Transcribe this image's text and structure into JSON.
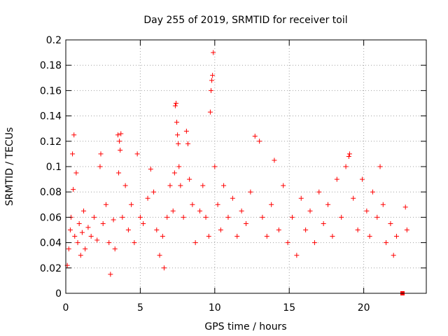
{
  "chart_data": {
    "type": "scatter",
    "title": "Day 255 of 2019, SRMTID for receiver toil",
    "xlabel": "GPS time / hours",
    "ylabel": "SRMTID / TECUs",
    "xlim": [
      0,
      24.2
    ],
    "ylim": [
      0,
      0.2
    ],
    "xticks": [
      0,
      5,
      10,
      15,
      20
    ],
    "xtick_labels": [
      "0",
      "5",
      "10",
      "15",
      "20"
    ],
    "yticks": [
      0,
      0.02,
      0.04,
      0.06,
      0.08,
      0.1,
      0.12,
      0.14,
      0.16,
      0.18,
      0.2
    ],
    "ytick_labels": [
      "0",
      "0.02",
      "0.04",
      "0.06",
      "0.08",
      "0.1",
      "0.12",
      "0.14",
      "0.16",
      "0.18",
      "0.2"
    ],
    "grid": true,
    "series": [
      {
        "marker": "plus",
        "color": "#ff0000",
        "points": [
          [
            0.1,
            0.022
          ],
          [
            0.2,
            0.035
          ],
          [
            0.3,
            0.05
          ],
          [
            0.35,
            0.06
          ],
          [
            0.45,
            0.11
          ],
          [
            0.5,
            0.082
          ],
          [
            0.55,
            0.125
          ],
          [
            0.6,
            0.045
          ],
          [
            0.7,
            0.095
          ],
          [
            0.8,
            0.04
          ],
          [
            0.9,
            0.055
          ],
          [
            1.0,
            0.03
          ],
          [
            1.1,
            0.048
          ],
          [
            1.2,
            0.065
          ],
          [
            1.3,
            0.035
          ],
          [
            1.5,
            0.052
          ],
          [
            1.7,
            0.045
          ],
          [
            1.9,
            0.06
          ],
          [
            2.1,
            0.042
          ],
          [
            2.3,
            0.1
          ],
          [
            2.35,
            0.11
          ],
          [
            2.5,
            0.055
          ],
          [
            2.7,
            0.07
          ],
          [
            2.9,
            0.04
          ],
          [
            3.0,
            0.015
          ],
          [
            3.2,
            0.058
          ],
          [
            3.3,
            0.035
          ],
          [
            3.5,
            0.125
          ],
          [
            3.55,
            0.095
          ],
          [
            3.6,
            0.12
          ],
          [
            3.65,
            0.113
          ],
          [
            3.7,
            0.126
          ],
          [
            3.8,
            0.06
          ],
          [
            4.0,
            0.085
          ],
          [
            4.2,
            0.05
          ],
          [
            4.4,
            0.07
          ],
          [
            4.6,
            0.04
          ],
          [
            4.8,
            0.11
          ],
          [
            5.0,
            0.06
          ],
          [
            5.2,
            0.055
          ],
          [
            5.5,
            0.075
          ],
          [
            5.7,
            0.098
          ],
          [
            5.9,
            0.08
          ],
          [
            6.1,
            0.05
          ],
          [
            6.3,
            0.03
          ],
          [
            6.5,
            0.045
          ],
          [
            6.6,
            0.02
          ],
          [
            6.8,
            0.06
          ],
          [
            7.0,
            0.085
          ],
          [
            7.2,
            0.065
          ],
          [
            7.3,
            0.095
          ],
          [
            7.35,
            0.148
          ],
          [
            7.4,
            0.15
          ],
          [
            7.45,
            0.135
          ],
          [
            7.5,
            0.125
          ],
          [
            7.55,
            0.118
          ],
          [
            7.6,
            0.1
          ],
          [
            7.7,
            0.085
          ],
          [
            7.9,
            0.06
          ],
          [
            8.1,
            0.128
          ],
          [
            8.2,
            0.118
          ],
          [
            8.3,
            0.09
          ],
          [
            8.5,
            0.07
          ],
          [
            8.7,
            0.04
          ],
          [
            9.0,
            0.065
          ],
          [
            9.2,
            0.085
          ],
          [
            9.4,
            0.06
          ],
          [
            9.6,
            0.045
          ],
          [
            9.7,
            0.143
          ],
          [
            9.75,
            0.16
          ],
          [
            9.8,
            0.168
          ],
          [
            9.85,
            0.172
          ],
          [
            9.9,
            0.19
          ],
          [
            10.0,
            0.1
          ],
          [
            10.2,
            0.07
          ],
          [
            10.4,
            0.05
          ],
          [
            10.6,
            0.085
          ],
          [
            10.9,
            0.06
          ],
          [
            11.2,
            0.075
          ],
          [
            11.5,
            0.045
          ],
          [
            11.8,
            0.065
          ],
          [
            12.1,
            0.055
          ],
          [
            12.4,
            0.08
          ],
          [
            12.7,
            0.124
          ],
          [
            13.0,
            0.12
          ],
          [
            13.2,
            0.06
          ],
          [
            13.5,
            0.045
          ],
          [
            13.8,
            0.07
          ],
          [
            14.0,
            0.105
          ],
          [
            14.3,
            0.05
          ],
          [
            14.6,
            0.085
          ],
          [
            14.9,
            0.04
          ],
          [
            15.2,
            0.06
          ],
          [
            15.5,
            0.03
          ],
          [
            15.8,
            0.075
          ],
          [
            16.1,
            0.05
          ],
          [
            16.4,
            0.065
          ],
          [
            16.7,
            0.04
          ],
          [
            17.0,
            0.08
          ],
          [
            17.3,
            0.055
          ],
          [
            17.6,
            0.07
          ],
          [
            17.9,
            0.045
          ],
          [
            18.2,
            0.09
          ],
          [
            18.5,
            0.06
          ],
          [
            18.8,
            0.1
          ],
          [
            19.0,
            0.108
          ],
          [
            19.05,
            0.11
          ],
          [
            19.3,
            0.075
          ],
          [
            19.6,
            0.05
          ],
          [
            19.9,
            0.09
          ],
          [
            20.2,
            0.065
          ],
          [
            20.4,
            0.045
          ],
          [
            20.6,
            0.08
          ],
          [
            20.9,
            0.06
          ],
          [
            21.1,
            0.1
          ],
          [
            21.3,
            0.07
          ],
          [
            21.5,
            0.04
          ],
          [
            21.8,
            0.055
          ],
          [
            22.0,
            0.03
          ],
          [
            22.2,
            0.045
          ],
          [
            22.8,
            0.068
          ],
          [
            22.9,
            0.05
          ]
        ]
      },
      {
        "marker": "square",
        "color": "#ff0000",
        "points": [
          [
            22.6,
            0.0
          ]
        ]
      }
    ]
  }
}
